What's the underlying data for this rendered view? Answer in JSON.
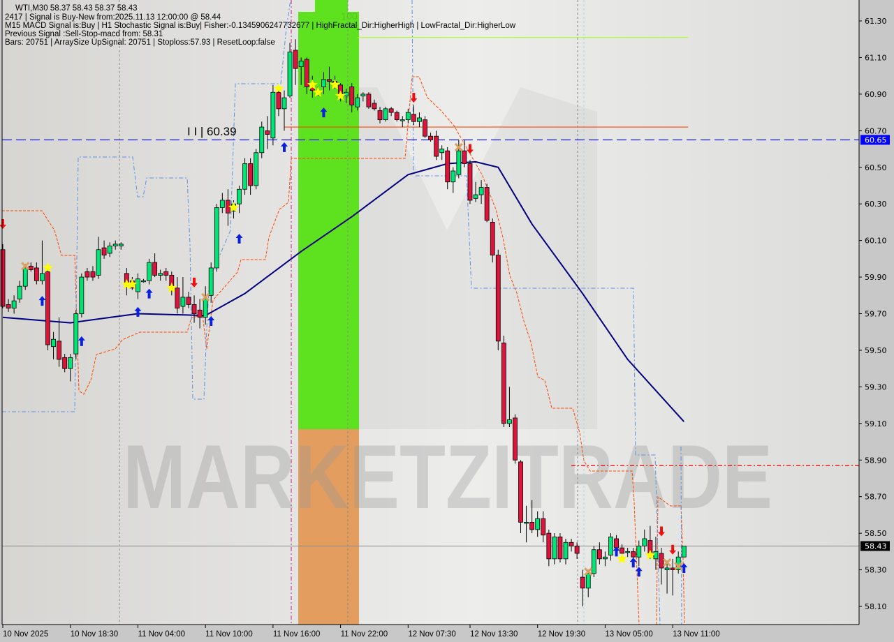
{
  "header": {
    "line1": "WTI,M30  58.37 58.43 58.37 58.43",
    "line2": "2417 | Signal is Buy-New from:2025.11.13 12:00:00 @ 58.44",
    "line3": "M15 MACD Signal is:Buy | H1 Stochastic Signal is:Buy| Fisher:-0.1345906247732677 | HighFractal_Dir:HigherHigh | LowFractal_Dir:HigherLow",
    "line4": "Previous Signal :Sell-Stop-macd from: 58.31",
    "line5": "Bars: 20751 | ArraySize UpSignal: 20751 | Stoploss:57.93 | ResetLoop:false"
  },
  "level_label": "I I | 60.39",
  "zone_label": "100",
  "watermark": "MARKETZITRADE",
  "chart_data": {
    "type": "candlestick",
    "symbol": "WTI",
    "timeframe": "M30",
    "ylim": [
      58.03,
      61.41
    ],
    "y_ticks": [
      "61.30",
      "61.10",
      "60.90",
      "60.70",
      "60.50",
      "60.30",
      "60.10",
      "59.90",
      "59.70",
      "59.50",
      "59.30",
      "59.10",
      "58.90",
      "58.70",
      "58.50",
      "58.30",
      "58.10"
    ],
    "x_ticks": [
      {
        "label": "10 Nov 2025",
        "index": 0
      },
      {
        "label": "10 Nov 18:30",
        "index": 12
      },
      {
        "label": "11 Nov 04:00",
        "index": 24
      },
      {
        "label": "11 Nov 10:00",
        "index": 36
      },
      {
        "label": "11 Nov 16:00",
        "index": 48
      },
      {
        "label": "11 Nov 22:00",
        "index": 60
      },
      {
        "label": "12 Nov 07:30",
        "index": 72
      },
      {
        "label": "12 Nov 13:30",
        "index": 83
      },
      {
        "label": "12 Nov 19:30",
        "index": 95
      },
      {
        "label": "13 Nov 05:00",
        "index": 107
      },
      {
        "label": "13 Nov 11:00",
        "index": 119
      }
    ],
    "current_price": {
      "label": "58.43",
      "value": 58.43,
      "color": "#000000"
    },
    "marked_level": {
      "label": "60.65",
      "value": 60.65,
      "color": "#0000ff"
    },
    "lines": [
      {
        "kind": "resistance",
        "value": 60.72,
        "color": "#ff4500",
        "from": 50,
        "to": 121
      },
      {
        "kind": "stop-level",
        "value": 58.87,
        "color": "#e00000",
        "from": 101
      },
      {
        "kind": "upper-level",
        "value": 61.21,
        "color": "#adff2f",
        "from": 63,
        "to": 121
      }
    ],
    "colors": {
      "bull": "#00e676",
      "bear": "#dc143c",
      "ma": "#000080",
      "zone_buy": "#5ee21f",
      "zone_sell": "#e8a060"
    },
    "ohlc": [
      [
        60.05,
        60.08,
        59.73,
        59.74
      ],
      [
        59.75,
        59.78,
        59.71,
        59.73
      ],
      [
        59.73,
        59.8,
        59.7,
        59.77
      ],
      [
        59.78,
        59.88,
        59.76,
        59.85
      ],
      [
        59.85,
        59.97,
        59.83,
        59.95
      ],
      [
        59.96,
        59.98,
        59.93,
        59.94
      ],
      [
        59.95,
        59.98,
        59.86,
        59.88
      ],
      [
        59.88,
        60.1,
        59.86,
        59.92
      ],
      [
        59.93,
        59.95,
        59.5,
        59.53
      ],
      [
        59.52,
        59.6,
        59.45,
        59.56
      ],
      [
        59.55,
        59.68,
        59.41,
        59.45
      ],
      [
        59.46,
        59.48,
        59.38,
        59.4
      ],
      [
        59.4,
        59.48,
        59.33,
        59.46
      ],
      [
        59.48,
        59.72,
        59.45,
        59.7
      ],
      [
        59.7,
        59.92,
        59.68,
        59.9
      ],
      [
        59.93,
        59.95,
        59.88,
        59.9
      ],
      [
        59.93,
        59.96,
        59.88,
        59.9
      ],
      [
        59.91,
        60.12,
        59.89,
        60.05
      ],
      [
        60.06,
        60.1,
        60.0,
        60.02
      ],
      [
        60.03,
        60.09,
        60.01,
        60.07
      ],
      [
        60.07,
        60.1,
        60.05,
        60.08
      ],
      [
        60.07,
        60.09,
        60.05,
        60.08
      ],
      [
        59.92,
        59.95,
        59.8,
        59.85
      ],
      [
        59.88,
        59.9,
        59.83,
        59.84
      ],
      [
        59.82,
        59.92,
        59.78,
        59.89
      ],
      [
        59.88,
        59.89,
        59.87,
        59.88
      ],
      [
        59.88,
        60.0,
        59.86,
        59.98
      ],
      [
        59.98,
        60.03,
        59.9,
        59.91
      ],
      [
        59.91,
        59.94,
        59.88,
        59.92
      ],
      [
        59.93,
        59.95,
        59.88,
        59.91
      ],
      [
        59.91,
        59.93,
        59.8,
        59.84
      ],
      [
        59.84,
        59.9,
        59.7,
        59.73
      ],
      [
        59.74,
        59.9,
        59.7,
        59.79
      ],
      [
        59.79,
        59.82,
        59.73,
        59.75
      ],
      [
        59.75,
        59.8,
        59.65,
        59.7
      ],
      [
        59.72,
        59.78,
        59.62,
        59.68
      ],
      [
        59.68,
        59.85,
        59.64,
        59.78
      ],
      [
        59.8,
        59.98,
        59.76,
        59.95
      ],
      [
        59.95,
        60.3,
        59.93,
        60.28
      ],
      [
        60.28,
        60.36,
        60.25,
        60.32
      ],
      [
        60.32,
        60.38,
        60.18,
        60.25
      ],
      [
        60.26,
        60.32,
        60.22,
        60.3
      ],
      [
        60.3,
        60.4,
        60.25,
        60.38
      ],
      [
        60.38,
        60.55,
        60.35,
        60.52
      ],
      [
        60.52,
        60.55,
        60.35,
        60.4
      ],
      [
        60.4,
        60.6,
        60.38,
        60.58
      ],
      [
        60.58,
        60.75,
        60.55,
        60.72
      ],
      [
        60.7,
        60.78,
        60.6,
        60.68
      ],
      [
        60.66,
        60.95,
        60.62,
        60.91
      ],
      [
        60.91,
        60.95,
        60.78,
        60.82
      ],
      [
        60.82,
        60.92,
        60.7,
        60.88
      ],
      [
        60.89,
        61.18,
        60.88,
        61.13
      ],
      [
        61.14,
        61.2,
        60.95,
        61.04
      ],
      [
        61.05,
        61.1,
        60.95,
        61.08
      ],
      [
        61.09,
        61.1,
        60.9,
        60.94
      ],
      [
        60.95,
        61.0,
        60.88,
        60.92
      ],
      [
        60.92,
        60.94,
        60.89,
        60.91
      ],
      [
        60.94,
        61.02,
        60.9,
        60.98
      ],
      [
        60.98,
        61.05,
        60.92,
        60.97
      ],
      [
        60.97,
        61.0,
        60.93,
        60.95
      ],
      [
        60.95,
        60.96,
        60.86,
        60.89
      ],
      [
        60.89,
        60.93,
        60.85,
        60.91
      ],
      [
        60.94,
        60.96,
        60.8,
        60.84
      ],
      [
        60.83,
        60.9,
        60.81,
        60.88
      ],
      [
        60.89,
        60.91,
        60.86,
        60.9
      ],
      [
        60.9,
        60.91,
        60.82,
        60.83
      ],
      [
        60.85,
        60.87,
        60.81,
        60.82
      ],
      [
        60.81,
        60.83,
        60.74,
        60.76
      ],
      [
        60.76,
        60.83,
        60.75,
        60.82
      ],
      [
        60.82,
        60.83,
        60.78,
        60.8
      ],
      [
        60.8,
        60.81,
        60.75,
        60.76
      ],
      [
        60.76,
        60.78,
        60.72,
        60.76
      ],
      [
        60.76,
        60.82,
        60.74,
        60.8
      ],
      [
        60.79,
        60.84,
        60.73,
        60.75
      ],
      [
        60.75,
        60.8,
        60.72,
        60.77
      ],
      [
        60.76,
        60.78,
        60.66,
        60.67
      ],
      [
        60.67,
        60.69,
        60.64,
        60.65
      ],
      [
        60.67,
        60.7,
        60.54,
        60.56
      ],
      [
        60.58,
        60.62,
        60.54,
        60.6
      ],
      [
        60.59,
        60.61,
        60.38,
        60.42
      ],
      [
        60.42,
        60.5,
        60.36,
        60.48
      ],
      [
        60.46,
        60.65,
        60.44,
        60.59
      ],
      [
        60.59,
        60.65,
        60.5,
        60.52
      ],
      [
        60.52,
        60.54,
        60.3,
        60.32
      ],
      [
        60.33,
        60.42,
        60.31,
        60.35
      ],
      [
        60.35,
        60.43,
        60.3,
        60.39
      ],
      [
        60.39,
        60.41,
        60.2,
        60.21
      ],
      [
        60.2,
        60.22,
        59.98,
        60.02
      ],
      [
        60.02,
        60.05,
        59.5,
        59.55
      ],
      [
        59.54,
        59.58,
        59.08,
        59.1
      ],
      [
        59.1,
        59.3,
        59.08,
        59.12
      ],
      [
        59.13,
        59.15,
        58.88,
        58.9
      ],
      [
        58.89,
        58.9,
        58.5,
        58.56
      ],
      [
        58.56,
        58.65,
        58.45,
        58.56
      ],
      [
        58.56,
        58.68,
        58.5,
        58.52
      ],
      [
        58.52,
        58.62,
        58.48,
        58.58
      ],
      [
        58.58,
        58.62,
        58.45,
        58.49
      ],
      [
        58.5,
        58.52,
        58.32,
        58.36
      ],
      [
        58.36,
        58.5,
        58.33,
        58.48
      ],
      [
        58.48,
        58.5,
        58.34,
        58.36
      ],
      [
        58.36,
        58.47,
        58.33,
        58.45
      ],
      [
        58.45,
        58.47,
        58.4,
        58.43
      ],
      [
        58.43,
        58.45,
        58.36,
        58.39
      ],
      [
        58.26,
        58.3,
        58.1,
        58.2
      ],
      [
        58.2,
        58.3,
        58.15,
        58.28
      ],
      [
        58.28,
        58.43,
        58.26,
        58.41
      ],
      [
        58.41,
        58.45,
        58.33,
        58.36
      ],
      [
        58.36,
        58.4,
        58.32,
        58.37
      ],
      [
        58.38,
        58.5,
        58.35,
        58.48
      ],
      [
        58.47,
        58.49,
        58.38,
        58.42
      ],
      [
        58.42,
        58.44,
        58.36,
        58.39
      ],
      [
        58.4,
        58.42,
        58.37,
        58.4
      ],
      [
        58.4,
        58.42,
        58.33,
        58.37
      ],
      [
        58.37,
        58.46,
        58.32,
        58.43
      ],
      [
        58.43,
        58.52,
        58.4,
        58.47
      ],
      [
        58.46,
        58.54,
        58.36,
        58.39
      ],
      [
        58.36,
        58.48,
        58.3,
        58.4
      ],
      [
        58.39,
        58.42,
        58.22,
        58.31
      ],
      [
        58.3,
        58.35,
        58.17,
        58.31
      ],
      [
        58.31,
        58.36,
        58.16,
        58.3
      ],
      [
        58.3,
        58.4,
        58.28,
        58.37
      ],
      [
        58.37,
        58.43,
        58.37,
        58.43
      ]
    ],
    "moving_average": [
      [
        0,
        59.68
      ],
      [
        12,
        59.65
      ],
      [
        24,
        59.7
      ],
      [
        36,
        59.69
      ],
      [
        43,
        59.81
      ],
      [
        53,
        60.04
      ],
      [
        62,
        60.23
      ],
      [
        72,
        60.46
      ],
      [
        79,
        60.52
      ],
      [
        84,
        60.53
      ],
      [
        88,
        60.5
      ],
      [
        94,
        60.19
      ],
      [
        103,
        59.81
      ],
      [
        111,
        59.45
      ],
      [
        121,
        59.11
      ]
    ],
    "signals": {
      "buy_arrows": [
        [
          7,
          59.77
        ],
        [
          14,
          59.55
        ],
        [
          24,
          59.71
        ],
        [
          26,
          59.81
        ],
        [
          37,
          59.66
        ],
        [
          42,
          60.11
        ],
        [
          50,
          60.61
        ],
        [
          57,
          60.8
        ],
        [
          109,
          58.4
        ],
        [
          112,
          58.34
        ],
        [
          113,
          58.29
        ],
        [
          121,
          58.31
        ]
      ],
      "sell_arrows": [
        [
          0,
          60.19
        ],
        [
          34,
          59.87
        ],
        [
          73,
          60.88
        ],
        [
          83,
          60.6
        ],
        [
          117,
          58.51
        ],
        [
          119,
          58.41
        ]
      ],
      "stars": [
        [
          8,
          59.95
        ],
        [
          22,
          59.86
        ],
        [
          23,
          59.86
        ],
        [
          30,
          59.84
        ],
        [
          41,
          60.28
        ],
        [
          49,
          60.93
        ],
        [
          55,
          60.95
        ],
        [
          56,
          60.91
        ],
        [
          59,
          60.95
        ],
        [
          60,
          60.89
        ],
        [
          110,
          58.36
        ],
        [
          115,
          58.38
        ]
      ],
      "crosses": [
        [
          4,
          59.96
        ],
        [
          36,
          59.79
        ],
        [
          81,
          60.61
        ],
        [
          104,
          58.29
        ],
        [
          118,
          58.34
        ],
        [
          120,
          58.32
        ]
      ]
    }
  }
}
